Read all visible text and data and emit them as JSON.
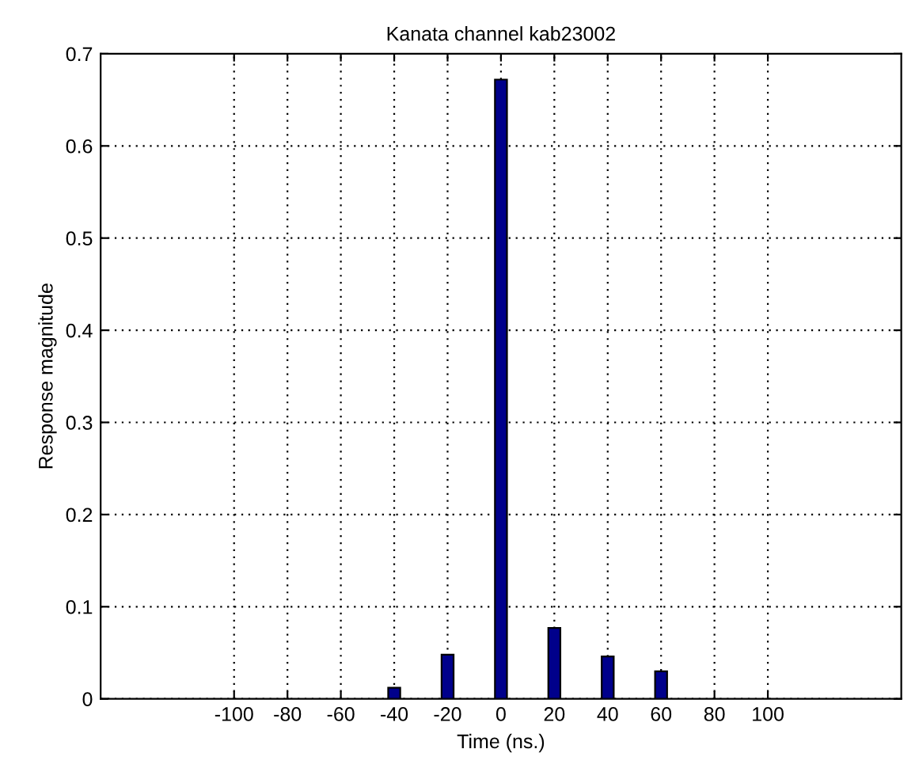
{
  "chart_data": {
    "type": "bar",
    "title": "Kanata channel kab23002",
    "xlabel": "Time (ns.)",
    "ylabel": "Response magnitude",
    "x": [
      -40,
      -20,
      0,
      20,
      40,
      60
    ],
    "values": [
      0.012,
      0.048,
      0.672,
      0.077,
      0.046,
      0.03
    ],
    "color": "#00008b",
    "xlim": [
      -150,
      150
    ],
    "xticks": [
      -100,
      -80,
      -60,
      -40,
      -20,
      0,
      20,
      40,
      60,
      80,
      100
    ],
    "ylim": [
      0,
      0.7
    ],
    "yticks": [
      0,
      0.1,
      0.2,
      0.3,
      0.4,
      0.5,
      0.6,
      0.7
    ],
    "grid": true
  }
}
